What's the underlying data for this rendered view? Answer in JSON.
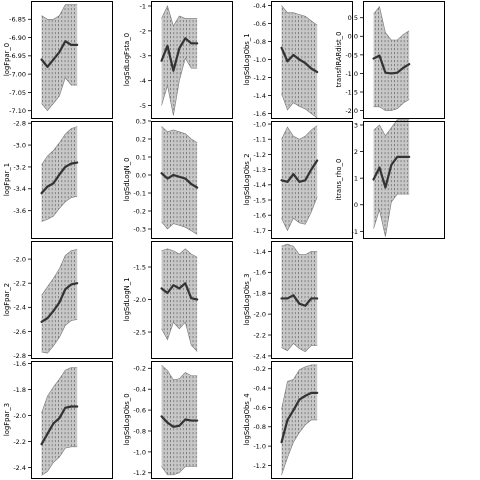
{
  "colors": {
    "band_fill": "#c8c8c8",
    "hatch": "#555555",
    "line": "#333333",
    "frame": "#000000"
  },
  "chart_data": [
    {
      "type": "area",
      "ylabel": "logFpar_0",
      "ylim": [
        -7.12,
        -6.8
      ],
      "yticks": [
        -7.1,
        -7.05,
        -7.0,
        -6.95,
        -6.9,
        -6.85
      ],
      "tick_labels": [
        "-7.10",
        "-7.05",
        "-7.00",
        "-6.95",
        "-6.90",
        "-6.85"
      ],
      "x": [
        1,
        2,
        3,
        4,
        5,
        6,
        7
      ],
      "mean": [
        -6.96,
        -6.98,
        -6.96,
        -6.94,
        -6.91,
        -6.92,
        -6.92
      ],
      "upper": [
        -6.84,
        -6.85,
        -6.85,
        -6.84,
        -6.81,
        -6.81,
        -6.81
      ],
      "lower": [
        -7.08,
        -7.1,
        -7.08,
        -7.06,
        -7.01,
        -7.03,
        -7.03
      ]
    },
    {
      "type": "area",
      "ylabel": "logSdLogFsta_0",
      "ylim": [
        -5.5,
        -0.8
      ],
      "yticks": [
        -5,
        -4,
        -3,
        -2,
        -1
      ],
      "tick_labels": [
        "-5",
        "-4",
        "-3",
        "-2",
        "-1"
      ],
      "x": [
        1,
        2,
        3,
        4,
        5,
        6,
        7
      ],
      "mean": [
        -3.2,
        -2.6,
        -3.6,
        -2.7,
        -2.3,
        -2.5,
        -2.5
      ],
      "upper": [
        -1.5,
        -1.0,
        -1.8,
        -1.4,
        -1.5,
        -1.5,
        -1.5
      ],
      "lower": [
        -5.0,
        -4.2,
        -5.4,
        -4.0,
        -3.1,
        -3.5,
        -3.5
      ]
    },
    {
      "type": "area",
      "ylabel": "logSdLogObs_1",
      "ylim": [
        -1.65,
        -0.35
      ],
      "yticks": [
        -1.6,
        -1.4,
        -1.2,
        -1.0,
        -0.8,
        -0.6,
        -0.4
      ],
      "tick_labels": [
        "-1.6",
        "-1.4",
        "-1.2",
        "-1.0",
        "-0.8",
        "-0.6",
        "-0.4"
      ],
      "x": [
        1,
        2,
        3,
        4,
        5,
        6,
        7
      ],
      "mean": [
        -0.87,
        -1.02,
        -0.95,
        -1.0,
        -1.04,
        -1.1,
        -1.14
      ],
      "upper": [
        -0.4,
        -0.48,
        -0.48,
        -0.5,
        -0.52,
        -0.57,
        -0.62
      ],
      "lower": [
        -1.38,
        -1.56,
        -1.48,
        -1.52,
        -1.55,
        -1.6,
        -1.65
      ]
    },
    {
      "type": "area",
      "ylabel": "transfIRARdist_0",
      "ylim": [
        -2.2,
        0.95
      ],
      "yticks": [
        -2.0,
        -1.5,
        -1.0,
        -0.5,
        0.0,
        0.5
      ],
      "tick_labels": [
        "-2.0",
        "-1.5",
        "-1.0",
        "-0.5",
        "0.0",
        "0.5"
      ],
      "x": [
        1,
        2,
        3,
        4,
        5,
        6,
        7
      ],
      "mean": [
        -0.6,
        -0.52,
        -0.98,
        -1.0,
        -0.98,
        -0.85,
        -0.75
      ],
      "upper": [
        0.6,
        0.8,
        0.1,
        -0.1,
        -0.1,
        0.05,
        0.15
      ],
      "lower": [
        -1.9,
        -1.9,
        -2.0,
        -2.0,
        -1.95,
        -1.8,
        -1.7
      ]
    },
    {
      "type": "area",
      "ylabel": "logFpar_1",
      "ylim": [
        -3.85,
        -2.78
      ],
      "yticks": [
        -3.6,
        -3.4,
        -3.2,
        -3.0,
        -2.8
      ],
      "tick_labels": [
        "-3.6",
        "-3.4",
        "-3.2",
        "-3.0",
        "-2.8"
      ],
      "x": [
        1,
        2,
        3,
        4,
        5,
        6,
        7
      ],
      "mean": [
        -3.44,
        -3.38,
        -3.35,
        -3.27,
        -3.2,
        -3.17,
        -3.16
      ],
      "upper": [
        -3.18,
        -3.1,
        -3.05,
        -2.98,
        -2.9,
        -2.85,
        -2.83
      ],
      "lower": [
        -3.7,
        -3.68,
        -3.65,
        -3.58,
        -3.52,
        -3.48,
        -3.47
      ]
    },
    {
      "type": "area",
      "ylabel": "logSdLogN_0",
      "ylim": [
        -0.35,
        0.3
      ],
      "yticks": [
        -0.3,
        -0.2,
        -0.1,
        0.0,
        0.1,
        0.2,
        0.3
      ],
      "tick_labels": [
        "-0.3",
        "-0.2",
        "-0.1",
        "0.0",
        "0.1",
        "0.2",
        "0.3"
      ],
      "x": [
        1,
        2,
        3,
        4,
        5,
        6,
        7
      ],
      "mean": [
        0.01,
        -0.02,
        0.0,
        -0.01,
        -0.02,
        -0.05,
        -0.07
      ],
      "upper": [
        0.27,
        0.24,
        0.25,
        0.24,
        0.23,
        0.2,
        0.18
      ],
      "lower": [
        -0.26,
        -0.3,
        -0.27,
        -0.28,
        -0.29,
        -0.31,
        -0.33
      ]
    },
    {
      "type": "area",
      "ylabel": "logSdLogObs_2",
      "ylim": [
        -1.75,
        -0.98
      ],
      "yticks": [
        -1.7,
        -1.6,
        -1.5,
        -1.4,
        -1.3,
        -1.2,
        -1.1,
        -1.0
      ],
      "tick_labels": [
        "-1.7",
        "-1.6",
        "-1.5",
        "-1.4",
        "-1.3",
        "-1.2",
        "-1.1",
        "-1.0"
      ],
      "x": [
        1,
        2,
        3,
        4,
        5,
        6,
        7
      ],
      "mean": [
        -1.37,
        -1.38,
        -1.33,
        -1.38,
        -1.37,
        -1.3,
        -1.24
      ],
      "upper": [
        -1.1,
        -1.02,
        -1.08,
        -1.1,
        -1.08,
        -1.04,
        -1.01
      ],
      "lower": [
        -1.62,
        -1.7,
        -1.62,
        -1.65,
        -1.66,
        -1.58,
        -1.48
      ]
    },
    {
      "type": "area",
      "ylabel": "itrans_rho_0",
      "ylim": [
        -1.25,
        3.15
      ],
      "yticks": [
        -1,
        0,
        1,
        2,
        3
      ],
      "tick_labels": [
        "-1",
        "0",
        "1",
        "2",
        "3"
      ],
      "x": [
        1,
        2,
        3,
        4,
        5,
        6,
        7
      ],
      "mean": [
        0.95,
        1.4,
        0.65,
        1.5,
        1.8,
        1.8,
        1.8
      ],
      "upper": [
        2.8,
        3.0,
        2.6,
        2.9,
        3.2,
        3.2,
        3.2
      ],
      "lower": [
        -0.9,
        -0.2,
        -1.2,
        0.1,
        0.4,
        0.4,
        0.4
      ]
    },
    {
      "type": "area",
      "ylabel": "logFpar_2",
      "ylim": [
        -2.82,
        -1.85
      ],
      "yticks": [
        -2.8,
        -2.6,
        -2.4,
        -2.2,
        -2.0
      ],
      "tick_labels": [
        "-2.8",
        "-2.6",
        "-2.4",
        "-2.2",
        "-2.0"
      ],
      "x": [
        1,
        2,
        3,
        4,
        5,
        6,
        7
      ],
      "mean": [
        -2.52,
        -2.49,
        -2.43,
        -2.36,
        -2.25,
        -2.21,
        -2.2
      ],
      "upper": [
        -2.3,
        -2.23,
        -2.16,
        -2.08,
        -1.97,
        -1.93,
        -1.92
      ],
      "lower": [
        -2.77,
        -2.78,
        -2.72,
        -2.65,
        -2.55,
        -2.51,
        -2.5
      ]
    },
    {
      "type": "area",
      "ylabel": "logSdLogN_1",
      "ylim": [
        -2.9,
        -1.1
      ],
      "yticks": [
        -2.5,
        -2.0,
        -1.5
      ],
      "tick_labels": [
        "-2.5",
        "-2.0",
        "-1.5"
      ],
      "x": [
        1,
        2,
        3,
        4,
        5,
        6,
        7
      ],
      "mean": [
        -1.83,
        -1.9,
        -1.78,
        -1.83,
        -1.75,
        -1.98,
        -2.0
      ],
      "upper": [
        -1.25,
        -1.22,
        -1.25,
        -1.3,
        -1.22,
        -1.3,
        -1.35
      ],
      "lower": [
        -2.45,
        -2.62,
        -2.35,
        -2.45,
        -2.35,
        -2.7,
        -2.8
      ]
    },
    {
      "type": "area",
      "ylabel": "logSdLogObs_3",
      "ylim": [
        -2.42,
        -1.3
      ],
      "yticks": [
        -2.4,
        -2.2,
        -2.0,
        -1.8,
        -1.6,
        -1.4
      ],
      "tick_labels": [
        "-2.4",
        "-2.2",
        "-2.0",
        "-1.8",
        "-1.6",
        "-1.4"
      ],
      "x": [
        1,
        2,
        3,
        4,
        5,
        6,
        7
      ],
      "mean": [
        -1.85,
        -1.85,
        -1.82,
        -1.9,
        -1.92,
        -1.85,
        -1.85
      ],
      "upper": [
        -1.35,
        -1.33,
        -1.35,
        -1.43,
        -1.43,
        -1.4,
        -1.4
      ],
      "lower": [
        -2.32,
        -2.35,
        -2.28,
        -2.33,
        -2.36,
        -2.3,
        -2.3
      ]
    },
    {
      "type": "area",
      "ylabel": "logFpar_3",
      "ylim": [
        -2.48,
        -1.58
      ],
      "yticks": [
        -2.4,
        -2.2,
        -2.0,
        -1.8,
        -1.6
      ],
      "tick_labels": [
        "-2.4",
        "-2.2",
        "-2.0",
        "-1.8",
        "-1.6"
      ],
      "x": [
        1,
        2,
        3,
        4,
        5,
        6,
        7
      ],
      "mean": [
        -2.22,
        -2.14,
        -2.06,
        -2.02,
        -1.94,
        -1.93,
        -1.93
      ],
      "upper": [
        -1.98,
        -1.85,
        -1.78,
        -1.72,
        -1.65,
        -1.63,
        -1.63
      ],
      "lower": [
        -2.46,
        -2.43,
        -2.36,
        -2.32,
        -2.25,
        -2.24,
        -2.24
      ]
    },
    {
      "type": "area",
      "ylabel": "logSdLogObs_0",
      "ylim": [
        -1.25,
        -0.13
      ],
      "yticks": [
        -1.2,
        -1.0,
        -0.8,
        -0.6,
        -0.4,
        -0.2
      ],
      "tick_labels": [
        "-1.2",
        "-1.0",
        "-0.8",
        "-0.6",
        "-0.4",
        "-0.2"
      ],
      "x": [
        1,
        2,
        3,
        4,
        5,
        6,
        7
      ],
      "mean": [
        -0.66,
        -0.72,
        -0.76,
        -0.75,
        -0.69,
        -0.7,
        -0.7
      ],
      "upper": [
        -0.17,
        -0.22,
        -0.31,
        -0.3,
        -0.24,
        -0.27,
        -0.27
      ],
      "lower": [
        -1.14,
        -1.22,
        -1.22,
        -1.2,
        -1.14,
        -1.14,
        -1.14
      ]
    },
    {
      "type": "area",
      "ylabel": "logSdLogObs_4",
      "ylim": [
        -1.33,
        -0.12
      ],
      "yticks": [
        -1.2,
        -1.0,
        -0.8,
        -0.6,
        -0.4,
        -0.2
      ],
      "tick_labels": [
        "-1.2",
        "-1.0",
        "-0.8",
        "-0.6",
        "-0.4",
        "-0.2"
      ],
      "x": [
        1,
        2,
        3,
        4,
        5,
        6,
        7
      ],
      "mean": [
        -0.96,
        -0.73,
        -0.63,
        -0.52,
        -0.48,
        -0.45,
        -0.45
      ],
      "upper": [
        -0.62,
        -0.33,
        -0.31,
        -0.21,
        -0.18,
        -0.16,
        -0.16
      ],
      "lower": [
        -1.3,
        -1.12,
        -0.96,
        -0.86,
        -0.78,
        -0.73,
        -0.73
      ]
    }
  ]
}
